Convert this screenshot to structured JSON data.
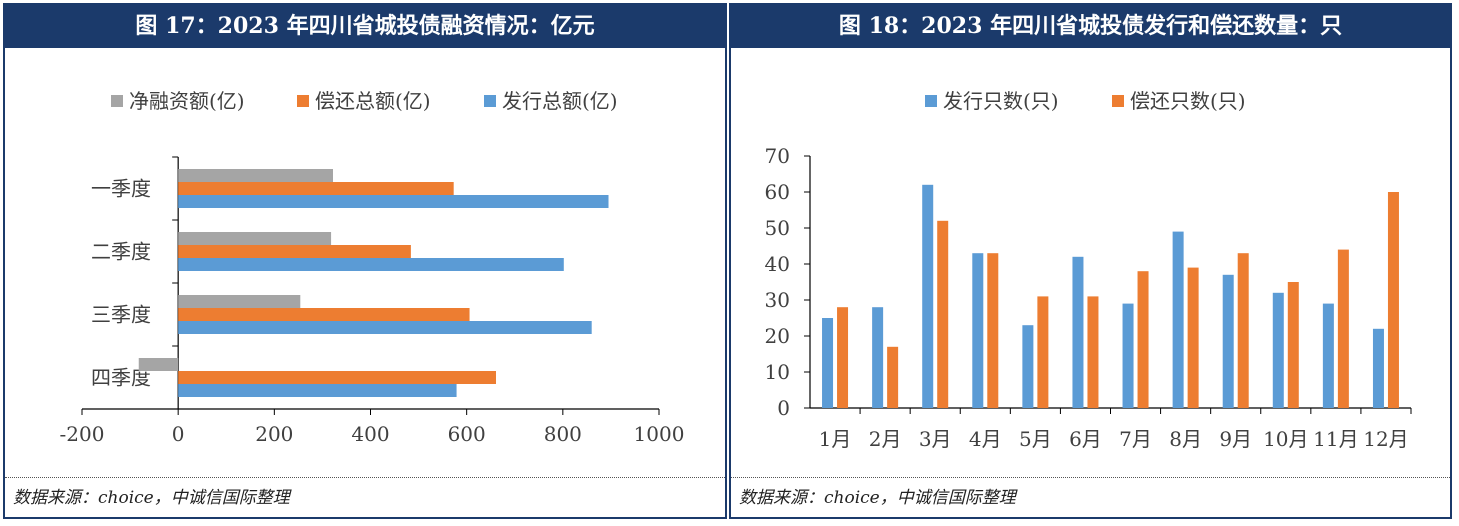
{
  "panels": [
    {
      "title": "图 17：2023 年四川省城投债融资情况：亿元",
      "source": "数据来源：choice，中诚信国际整理"
    },
    {
      "title": "图 18：2023 年四川省城投债发行和偿还数量：只",
      "source": "数据来源：choice，中诚信国际整理"
    }
  ],
  "colors": {
    "gray": "#a5a5a5",
    "orange": "#ed7d31",
    "blue": "#5b9bd5",
    "title_bg": "#1b3a6b"
  },
  "chart_data": [
    {
      "type": "bar",
      "orientation": "horizontal",
      "categories": [
        "一季度",
        "二季度",
        "三季度",
        "四季度"
      ],
      "series": [
        {
          "name": "净融资额(亿)",
          "color": "#a5a5a5",
          "values": [
            322,
            318,
            254,
            -82
          ]
        },
        {
          "name": "偿还总额(亿)",
          "color": "#ed7d31",
          "values": [
            573,
            484,
            606,
            661
          ]
        },
        {
          "name": "发行总额(亿)",
          "color": "#5b9bd5",
          "values": [
            895,
            802,
            860,
            579
          ]
        }
      ],
      "xlim": [
        -200,
        1000
      ],
      "xticks": [
        "-200",
        "0",
        "200",
        "400",
        "600",
        "800",
        "1000"
      ],
      "legend_position": "top",
      "grid": false
    },
    {
      "type": "bar",
      "orientation": "vertical",
      "categories": [
        "1月",
        "2月",
        "3月",
        "4月",
        "5月",
        "6月",
        "7月",
        "8月",
        "9月",
        "10月",
        "11月",
        "12月"
      ],
      "series": [
        {
          "name": "发行只数(只)",
          "color": "#5b9bd5",
          "values": [
            25,
            28,
            62,
            43,
            23,
            42,
            29,
            49,
            37,
            32,
            29,
            22
          ]
        },
        {
          "name": "偿还只数(只)",
          "color": "#ed7d31",
          "values": [
            28,
            17,
            52,
            43,
            31,
            31,
            38,
            39,
            43,
            35,
            44,
            60
          ]
        }
      ],
      "ylim": [
        0,
        70
      ],
      "yticks": [
        "0",
        "10",
        "20",
        "30",
        "40",
        "50",
        "60",
        "70"
      ],
      "legend_position": "top",
      "grid": false
    }
  ]
}
